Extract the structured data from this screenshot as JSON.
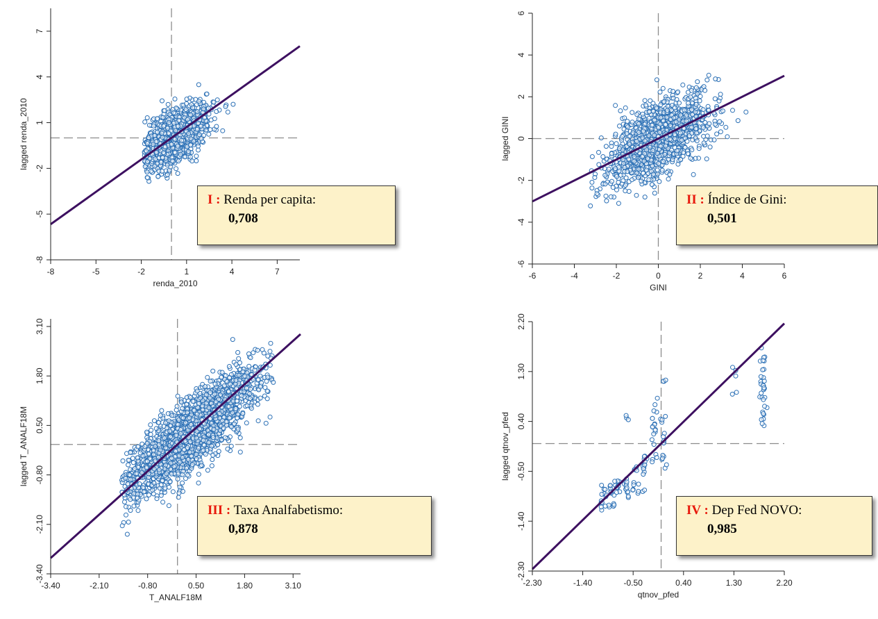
{
  "colors": {
    "points": "#2a6fb5",
    "regression": "#3d1060",
    "label_accent": "#e8190c",
    "box_fill": "#fdf2c9"
  },
  "chart_data": [
    {
      "type": "scatter",
      "xlabel": "renda_2010",
      "ylabel": "lagged renda_2010",
      "xlim": [
        -8,
        8.5
      ],
      "ylim": [
        -8,
        8.5
      ],
      "xticks": [
        "-8",
        "-5",
        "-2",
        "1",
        "4",
        "7"
      ],
      "yticks": [
        "-8",
        "-5",
        "-2",
        "1",
        "4",
        "7"
      ],
      "slope": 0.708,
      "cloud": {
        "x_mean": 0.2,
        "x_sd": 1.2,
        "x_min": -1.8,
        "x_max": 6.5,
        "y_sd": 0.85,
        "slope": 0.55,
        "n": 1100
      },
      "annotation": {
        "roman": "I :",
        "label": " Renda per capita:",
        "value": "0,708"
      }
    },
    {
      "type": "scatter",
      "xlabel": "GINI",
      "ylabel": "lagged GINI",
      "xlim": [
        -6,
        6
      ],
      "ylim": [
        -6,
        6
      ],
      "xticks": [
        "-6",
        "-4",
        "-2",
        "0",
        "2",
        "4",
        "6"
      ],
      "yticks": [
        "-6",
        "-4",
        "-2",
        "0",
        "2",
        "4",
        "6"
      ],
      "slope": 0.501,
      "cloud": {
        "x_mean": 0,
        "x_sd": 1.25,
        "x_min": -3.3,
        "x_max": 4.5,
        "y_sd": 0.85,
        "slope": 0.5,
        "n": 1300
      },
      "annotation": {
        "roman": "II :",
        "label": " Índice de Gini:",
        "value": "0,501"
      }
    },
    {
      "type": "scatter",
      "xlabel": "T_ANALF18M",
      "ylabel": "lagged T_ANALF18M",
      "xlim": [
        -3.4,
        3.3
      ],
      "ylim": [
        -3.4,
        3.3
      ],
      "xticks": [
        "-3.40",
        "-2.10",
        "-0.80",
        "0.50",
        "1.80",
        "3.10"
      ],
      "yticks": [
        "-3.40",
        "-2.10",
        "-0.80",
        "0.50",
        "1.80",
        "3.10"
      ],
      "slope": 0.878,
      "cloud": {
        "x_mean": 0.3,
        "x_sd": 0.9,
        "x_min": -1.5,
        "x_max": 2.7,
        "y_sd": 0.45,
        "slope": 0.8,
        "n": 2400
      },
      "annotation": {
        "roman": "III :",
        "label": " Taxa Analfabetismo:",
        "value": "0,878"
      }
    },
    {
      "type": "scatter",
      "xlabel": "qtnov_pfed",
      "ylabel": "lagged qtnov_pfed",
      "xlim": [
        -2.3,
        2.2
      ],
      "ylim": [
        -2.3,
        2.2
      ],
      "xticks": [
        "-2.30",
        "-1.40",
        "-0.50",
        "0.40",
        "1.30",
        "2.20"
      ],
      "yticks": [
        "-2.30",
        "-1.40",
        "-0.50",
        "0.40",
        "1.30",
        "2.20"
      ],
      "slope": 0.985,
      "columns": [
        {
          "x": -1.05,
          "y_min": -1.2,
          "y_max": -0.75,
          "n": 12
        },
        {
          "x": -0.9,
          "y_min": -1.15,
          "y_max": -0.7,
          "n": 12
        },
        {
          "x": -0.78,
          "y_min": -1.05,
          "y_max": -0.65,
          "n": 12
        },
        {
          "x": -0.6,
          "y_min": -1.0,
          "y_max": -0.55,
          "n": 12
        },
        {
          "x": -0.45,
          "y_min": -0.95,
          "y_max": -0.4,
          "n": 12
        },
        {
          "x": -0.6,
          "y_min": 0.35,
          "y_max": 0.55,
          "n": 3
        },
        {
          "x": -0.3,
          "y_min": -0.9,
          "y_max": -0.2,
          "n": 14
        },
        {
          "x": -0.12,
          "y_min": -0.35,
          "y_max": 1.0,
          "n": 20
        },
        {
          "x": 0.05,
          "y_min": -0.6,
          "y_max": 0.5,
          "n": 15
        },
        {
          "x": 0.05,
          "y_min": 1.0,
          "y_max": 1.4,
          "n": 3
        },
        {
          "x": 1.3,
          "y_min": 0.6,
          "y_max": 1.55,
          "n": 5
        },
        {
          "x": 1.82,
          "y_min": 0.3,
          "y_max": 1.9,
          "n": 32
        }
      ],
      "annotation": {
        "roman": "IV :",
        "label": " Dep Fed NOVO:",
        "value": "0,985"
      }
    }
  ]
}
